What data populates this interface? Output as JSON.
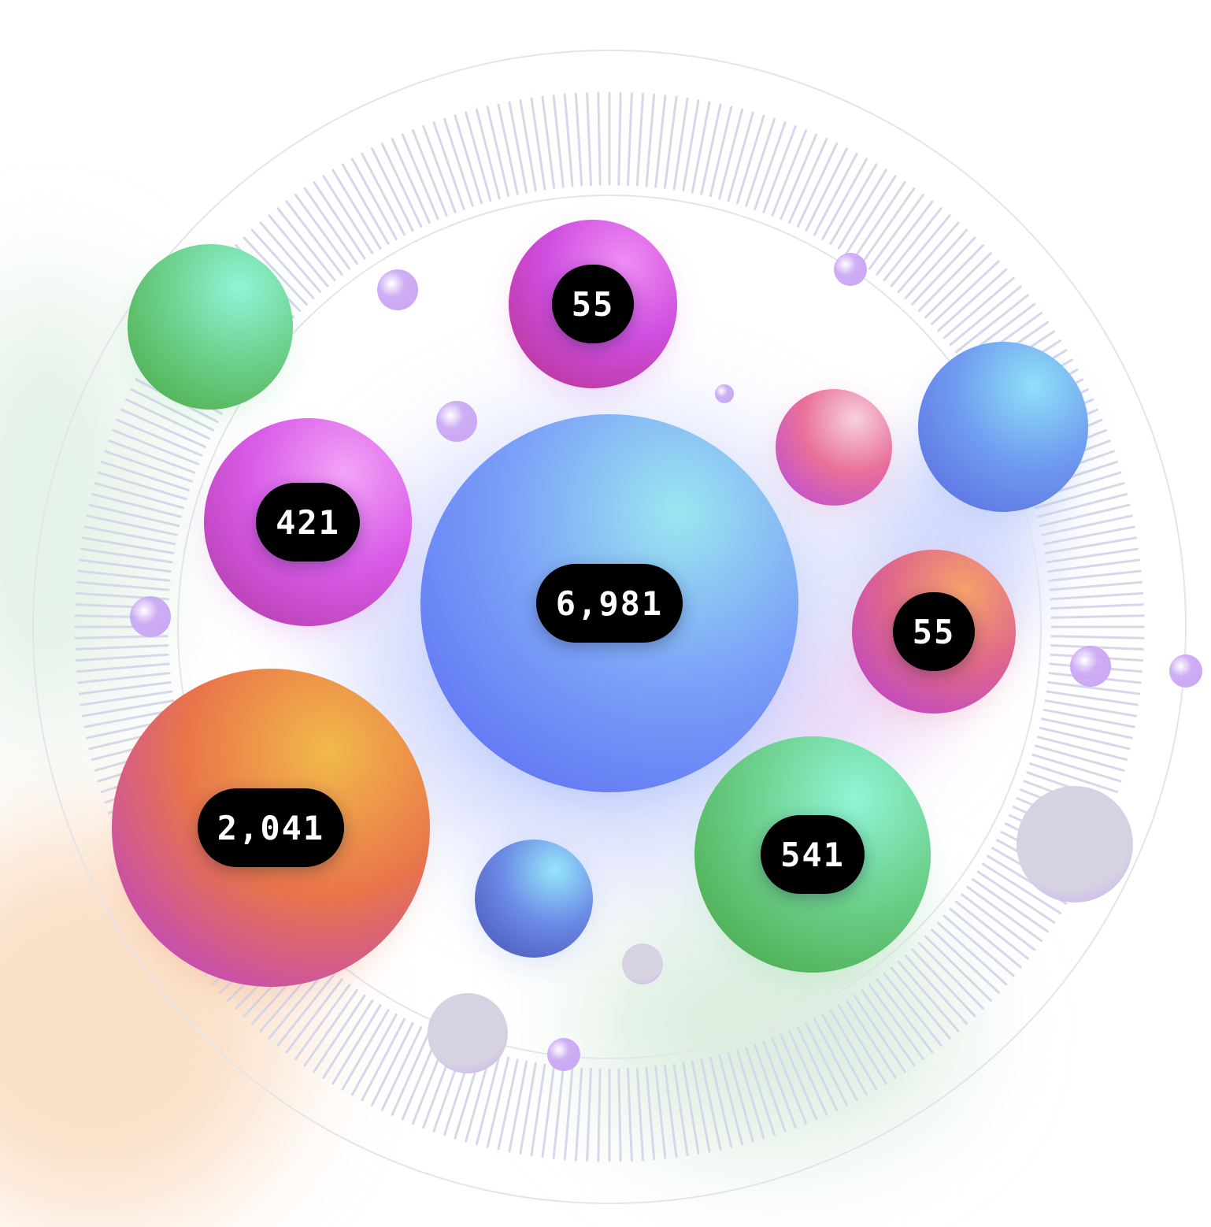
{
  "chart_data": {
    "type": "bubble",
    "title": "",
    "bubbles": [
      {
        "label": "6,981",
        "value": 6981,
        "labeled": true,
        "colors": [
          "#9be6f0",
          "#7aa0f8",
          "#5b6cf2"
        ]
      },
      {
        "label": "2,041",
        "value": 2041,
        "labeled": true,
        "colors": [
          "#f2b94a",
          "#e9744a",
          "#b93fd6"
        ]
      },
      {
        "label": "541",
        "value": 541,
        "labeled": true,
        "colors": [
          "#8ff5d6",
          "#6ccf8a",
          "#46a646"
        ]
      },
      {
        "label": "421",
        "value": 421,
        "labeled": true,
        "colors": [
          "#f3a3f7",
          "#d95be8",
          "#b23ba8"
        ]
      },
      {
        "label": "55",
        "value": 55,
        "labeled": true,
        "colors": [
          "#f08ef5",
          "#d04ee0",
          "#b53390"
        ]
      },
      {
        "label": "55",
        "value": 55,
        "labeled": true,
        "colors": [
          "#f6a36a",
          "#e0688a",
          "#b940d0"
        ]
      },
      {
        "label": "",
        "value": 0,
        "labeled": false,
        "colors": [
          "#8ff5d6",
          "#6dd08c",
          "#4bab46"
        ]
      },
      {
        "label": "",
        "value": 0,
        "labeled": false,
        "colors": [
          "#8fe0f8",
          "#6f9cf0",
          "#5a6ce0"
        ]
      },
      {
        "label": "",
        "value": 0,
        "labeled": false,
        "colors": [
          "#f7d0e0",
          "#e9709a",
          "#b94ad8"
        ]
      },
      {
        "label": "",
        "value": 0,
        "labeled": false,
        "colors": [
          "#95e6fa",
          "#6b8ae6",
          "#4a55b8"
        ]
      },
      {
        "label": "",
        "value": 0,
        "labeled": false,
        "colors": [
          "#e2e2ea",
          "#d5d5e0",
          "#c4a3f2"
        ]
      }
    ],
    "accent_colors": {
      "dot": "#c9a6f4",
      "grey_dot": "#d6d2e2",
      "ring": "#e4e4ec",
      "ticks": "#d6d8ea"
    },
    "grid": false,
    "legend": "none"
  }
}
